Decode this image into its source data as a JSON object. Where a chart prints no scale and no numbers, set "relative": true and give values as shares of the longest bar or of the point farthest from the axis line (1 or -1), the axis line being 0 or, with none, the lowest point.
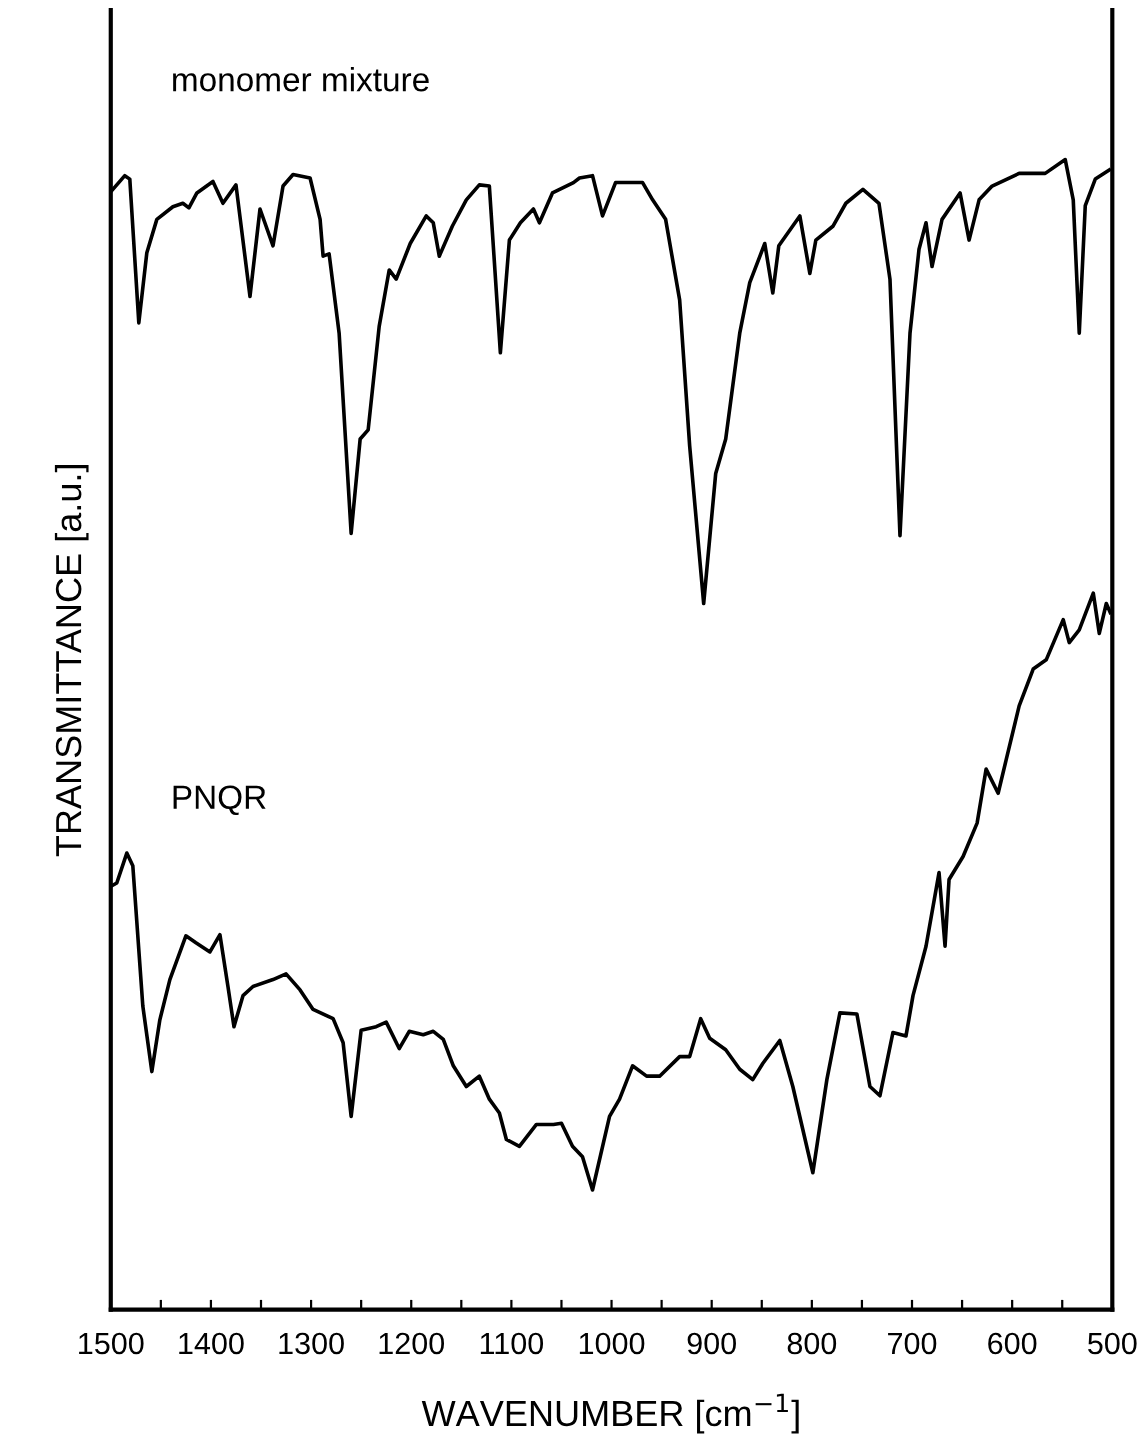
{
  "chart_data": {
    "type": "line",
    "relative": true,
    "xlabel": "WAVENUMBER [cm$^{−1}$]",
    "ylabel": "TRANSMITTANCE [a.u.]",
    "xlim": [
      1500,
      500
    ],
    "xticks": [
      1500,
      {
        "value": 1450,
        "label": null
      },
      1400,
      {
        "value": 1350,
        "label": null
      },
      1300,
      {
        "value": 1250,
        "label": null
      },
      1200,
      {
        "value": 1150,
        "label": null
      },
      1100,
      {
        "value": 1050,
        "label": null
      },
      1000,
      {
        "value": 950,
        "label": null
      },
      900,
      {
        "value": 850,
        "label": null
      },
      800,
      {
        "value": 750,
        "label": null
      },
      700,
      {
        "value": 650,
        "label": null
      },
      600,
      {
        "value": 550,
        "label": null
      },
      500
    ],
    "grid": false,
    "legend": false,
    "marker": "none",
    "line_style": "solid",
    "series": [
      {
        "name": "monomer mixture",
        "color": "#000000",
        "x": [
          1500,
          1486,
          1481,
          1472,
          1464,
          1454,
          1438,
          1428,
          1422,
          1414,
          1398,
          1388,
          1375,
          1361,
          1351,
          1338,
          1328,
          1318,
          1301,
          1291,
          1288,
          1282,
          1272,
          1260,
          1251,
          1243,
          1232,
          1222,
          1215,
          1201,
          1185,
          1178,
          1172,
          1159,
          1145,
          1132,
          1122,
          1111,
          1102,
          1091,
          1078,
          1072,
          1059,
          1038,
          1032,
          1019,
          1009,
          996,
          969,
          959,
          946,
          932,
          922,
          908,
          896,
          886,
          872,
          862,
          847,
          839,
          833,
          812,
          802,
          796,
          779,
          766,
          749,
          733,
          722,
          712,
          702,
          693,
          686,
          680,
          670,
          652,
          643,
          633,
          620,
          593,
          567,
          547,
          539,
          533,
          527,
          517,
          503
        ],
        "values": [
          0.972,
          0.986,
          0.983,
          0.858,
          0.919,
          0.948,
          0.959,
          0.962,
          0.958,
          0.971,
          0.981,
          0.962,
          0.978,
          0.881,
          0.957,
          0.925,
          0.977,
          0.987,
          0.984,
          0.948,
          0.916,
          0.918,
          0.849,
          0.675,
          0.757,
          0.765,
          0.855,
          0.904,
          0.896,
          0.927,
          0.951,
          0.945,
          0.916,
          0.942,
          0.965,
          0.978,
          0.977,
          0.832,
          0.93,
          0.945,
          0.957,
          0.945,
          0.971,
          0.98,
          0.984,
          0.986,
          0.951,
          0.98,
          0.98,
          0.965,
          0.948,
          0.878,
          0.751,
          0.614,
          0.727,
          0.757,
          0.849,
          0.893,
          0.927,
          0.884,
          0.925,
          0.951,
          0.901,
          0.93,
          0.942,
          0.962,
          0.974,
          0.962,
          0.896,
          0.673,
          0.849,
          0.922,
          0.945,
          0.907,
          0.948,
          0.971,
          0.93,
          0.965,
          0.977,
          0.988,
          0.988,
          1.0,
          0.965,
          0.849,
          0.96,
          0.983,
          0.991
        ]
      },
      {
        "name": "PNQR",
        "color": "#000000",
        "x": [
          1500,
          1494,
          1484,
          1478,
          1468,
          1459,
          1451,
          1441,
          1425,
          1415,
          1401,
          1391,
          1383,
          1377,
          1368,
          1358,
          1338,
          1325,
          1311,
          1298,
          1278,
          1268,
          1260,
          1250,
          1235,
          1225,
          1212,
          1202,
          1188,
          1178,
          1168,
          1158,
          1145,
          1132,
          1122,
          1112,
          1105,
          1092,
          1075,
          1058,
          1050,
          1039,
          1029,
          1019,
          1002,
          992,
          979,
          965,
          952,
          932,
          922,
          911,
          902,
          886,
          872,
          859,
          849,
          832,
          819,
          799,
          785,
          772,
          755,
          742,
          732,
          719,
          706,
          699,
          686,
          673,
          667,
          663,
          649,
          635,
          626,
          614,
          606,
          593,
          579,
          566,
          549,
          543,
          533,
          519,
          513,
          506,
          502
        ],
        "values": [
          0.368,
          0.371,
          0.397,
          0.386,
          0.264,
          0.207,
          0.252,
          0.287,
          0.325,
          0.319,
          0.311,
          0.326,
          0.281,
          0.246,
          0.273,
          0.281,
          0.287,
          0.292,
          0.278,
          0.261,
          0.253,
          0.232,
          0.168,
          0.243,
          0.246,
          0.25,
          0.227,
          0.242,
          0.239,
          0.242,
          0.235,
          0.212,
          0.194,
          0.203,
          0.183,
          0.171,
          0.148,
          0.142,
          0.161,
          0.161,
          0.162,
          0.142,
          0.133,
          0.104,
          0.168,
          0.183,
          0.212,
          0.203,
          0.203,
          0.22,
          0.22,
          0.253,
          0.236,
          0.226,
          0.209,
          0.2,
          0.214,
          0.234,
          0.194,
          0.119,
          0.2,
          0.258,
          0.257,
          0.194,
          0.186,
          0.241,
          0.238,
          0.273,
          0.316,
          0.38,
          0.316,
          0.374,
          0.394,
          0.423,
          0.47,
          0.449,
          0.478,
          0.525,
          0.557,
          0.565,
          0.6,
          0.58,
          0.591,
          0.623,
          0.588,
          0.614,
          0.606
        ]
      }
    ]
  }
}
